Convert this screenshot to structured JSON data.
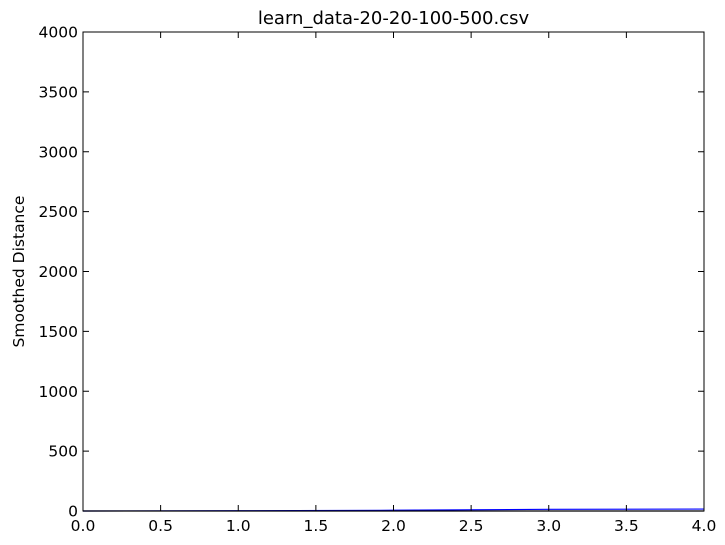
{
  "chart_data": {
    "type": "line",
    "title": "learn_data-20-20-100-500.csv",
    "xlabel": "",
    "ylabel": "Smoothed Distance",
    "xlim": [
      0,
      4
    ],
    "ylim": [
      0,
      4000
    ],
    "x_ticks": [
      "0.0",
      "0.5",
      "1.0",
      "1.5",
      "2.0",
      "2.5",
      "3.0",
      "3.5",
      "4.0"
    ],
    "y_ticks": [
      "0",
      "500",
      "1000",
      "1500",
      "2000",
      "2500",
      "3000",
      "3500",
      "4000"
    ],
    "grid": false,
    "series": [
      {
        "color": "#0000ff",
        "x": [
          0,
          1,
          2,
          3,
          4
        ],
        "y": [
          0,
          2,
          6,
          14,
          16
        ]
      },
      {
        "color": "#000000",
        "x": [
          0,
          1,
          2,
          3,
          4
        ],
        "y": [
          0,
          0,
          0,
          0,
          0
        ]
      }
    ]
  }
}
